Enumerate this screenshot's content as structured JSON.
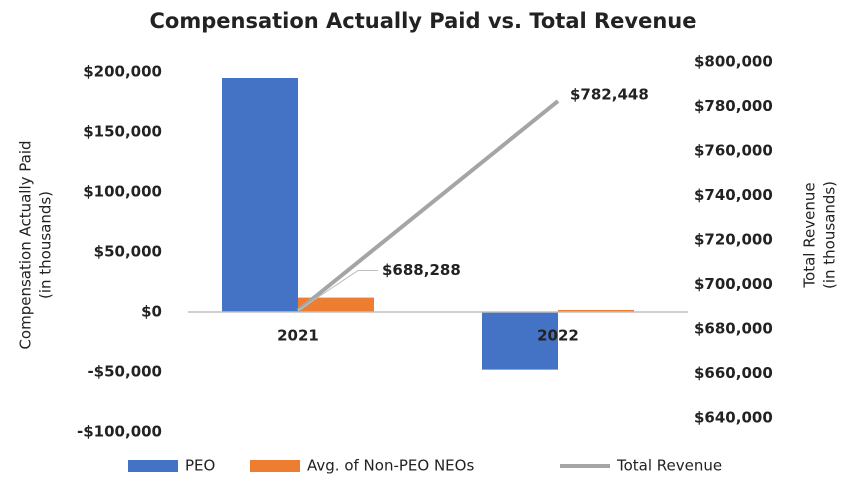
{
  "chart_data": {
    "type": "bar",
    "title": "Compensation Actually Paid vs. Total Revenue",
    "ylabel": [
      "Compensation Actually Paid",
      "(in thousands)"
    ],
    "y2label": [
      "Total Revenue",
      "(in thousands)"
    ],
    "categories": [
      "2021",
      "2022"
    ],
    "series": [
      {
        "name": "PEO",
        "color": "#4472c4",
        "values": [
          195000,
          -48000
        ]
      },
      {
        "name": "Avg. of Non-PEO NEOs",
        "color": "#ed7d31",
        "values": [
          12000,
          1700
        ]
      },
      {
        "name": "Total Revenue",
        "color": "#a5a5a5",
        "type": "line",
        "axis": "y2",
        "values": [
          688288,
          782448
        ],
        "value_labels": [
          "$688,288",
          "$782,448"
        ]
      }
    ],
    "ylim": [
      -100000,
      200000
    ],
    "yticks": [
      {
        "value": -100000,
        "label": "-$100,000"
      },
      {
        "value": -50000,
        "label": "-$50,000"
      },
      {
        "value": 0,
        "label": "$0"
      },
      {
        "value": 50000,
        "label": "$50,000"
      },
      {
        "value": 100000,
        "label": "$100,000"
      },
      {
        "value": 150000,
        "label": "$150,000"
      },
      {
        "value": 200000,
        "label": "$200,000"
      }
    ],
    "y2lim": [
      640000,
      800000
    ],
    "y2ticks": [
      {
        "value": 640000,
        "label": "$640,000"
      },
      {
        "value": 660000,
        "label": "$660,000"
      },
      {
        "value": 680000,
        "label": "$680,000"
      },
      {
        "value": 700000,
        "label": "$700,000"
      },
      {
        "value": 720000,
        "label": "$720,000"
      },
      {
        "value": 740000,
        "label": "$740,000"
      },
      {
        "value": 760000,
        "label": "$760,000"
      },
      {
        "value": 780000,
        "label": "$780,000"
      },
      {
        "value": 800000,
        "label": "$800,000"
      }
    ],
    "legend": "bottom"
  }
}
